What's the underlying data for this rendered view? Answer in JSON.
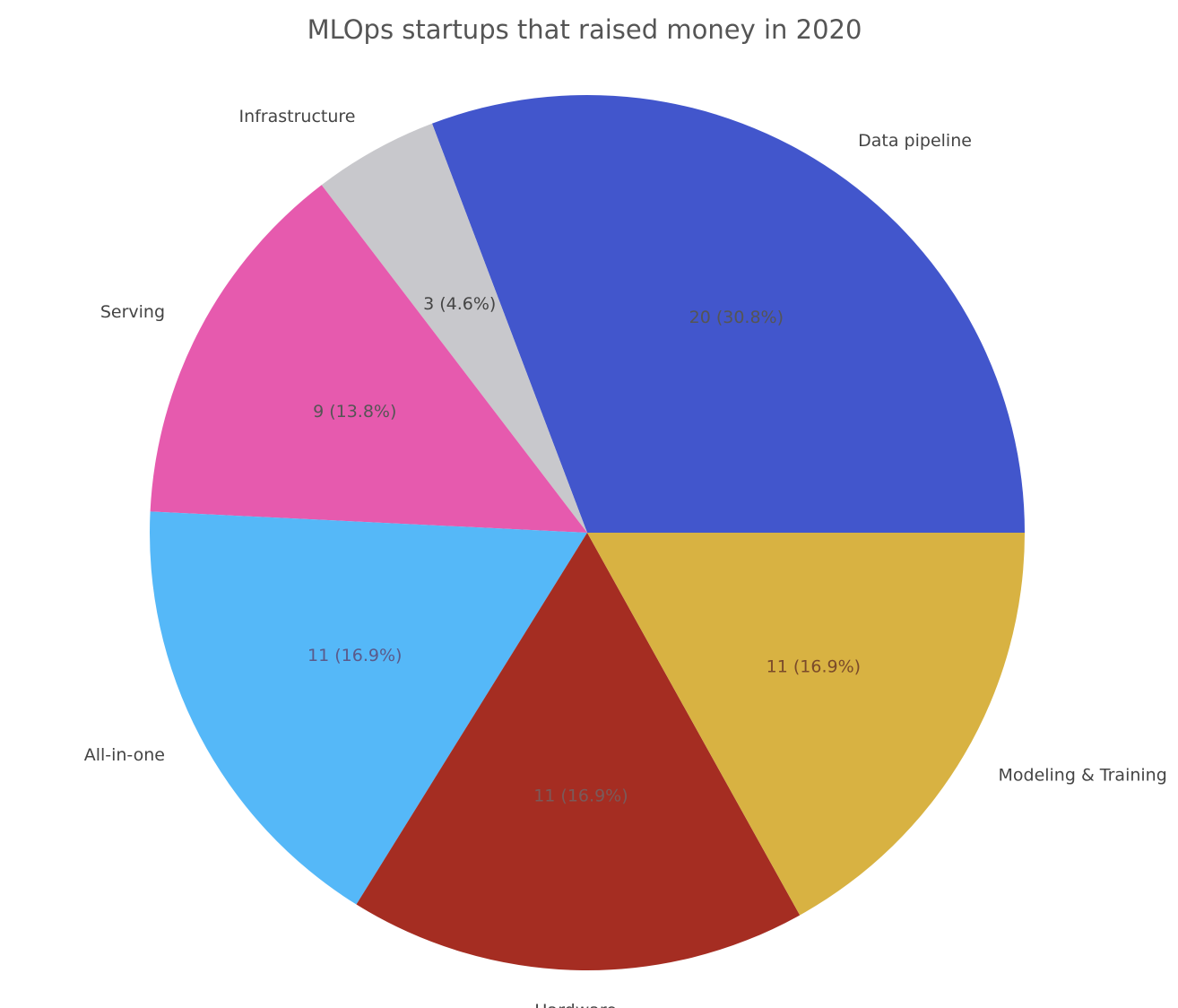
{
  "chart_data": {
    "type": "pie",
    "title": "MLOps startups that raised money in 2020",
    "slices": [
      {
        "label": "Data pipeline",
        "value": 20,
        "display": "20 (30.8%)",
        "color": "#4256CC",
        "text_color": "#555555"
      },
      {
        "label": "Infrastructure",
        "value": 3,
        "display": "3 (4.6%)",
        "color": "#C8C8CC",
        "text_color": "#444444"
      },
      {
        "label": "Serving",
        "value": 9,
        "display": "9 (13.8%)",
        "color": "#E65AAE",
        "text_color": "#555555"
      },
      {
        "label": "All-in-one",
        "value": 11,
        "display": "11 (16.9%)",
        "color": "#55B8F8",
        "text_color": "#5a5a8a"
      },
      {
        "label": "Hardware",
        "value": 11,
        "display": "11 (16.9%)",
        "color": "#A52D22",
        "text_color": "#7a5a5a"
      },
      {
        "label": "Modeling & Training",
        "value": 11,
        "display": "11 (16.9%)",
        "color": "#D8B242",
        "text_color": "#7a4a2a"
      }
    ],
    "direction": "clockwise",
    "legend": "none"
  }
}
